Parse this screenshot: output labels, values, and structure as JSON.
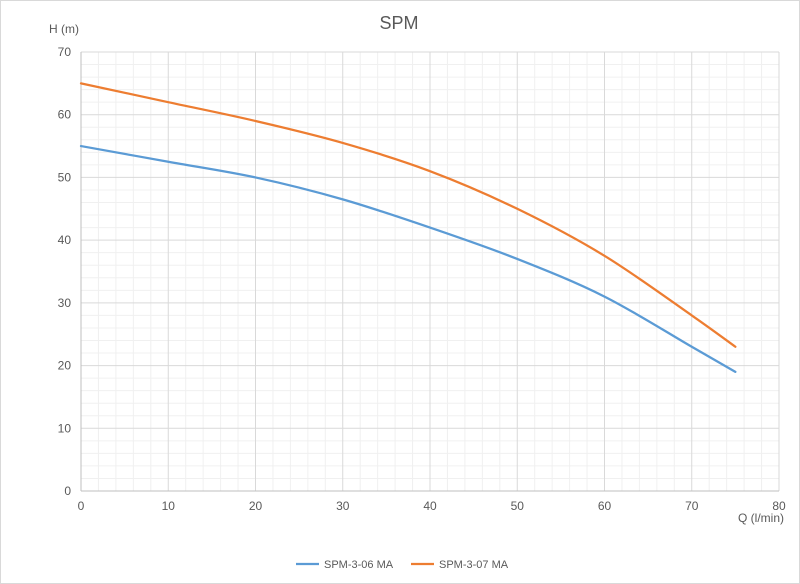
{
  "chart_data": {
    "type": "line",
    "title": "SPM",
    "xlabel": "Q (l/min)",
    "ylabel": "H (m)",
    "xlim": [
      0,
      80
    ],
    "ylim": [
      0,
      70
    ],
    "x_ticks": [
      "0",
      "10",
      "20",
      "30",
      "40",
      "50",
      "60",
      "70",
      "80"
    ],
    "y_ticks": [
      "0",
      "10",
      "20",
      "30",
      "40",
      "50",
      "60",
      "70"
    ],
    "grid": true,
    "minor_grid": true,
    "legend_position": "bottom",
    "series": [
      {
        "name": "SPM-3-06 MA",
        "color": "#5b9bd5",
        "points": [
          [
            0,
            55
          ],
          [
            10,
            52.5
          ],
          [
            20,
            50
          ],
          [
            30,
            46.5
          ],
          [
            40,
            42
          ],
          [
            50,
            37
          ],
          [
            60,
            31
          ],
          [
            70,
            23
          ],
          [
            75,
            19
          ]
        ]
      },
      {
        "name": "SPM-3-07 MA",
        "color": "#ed7d31",
        "points": [
          [
            0,
            65
          ],
          [
            10,
            62
          ],
          [
            20,
            59
          ],
          [
            30,
            55.5
          ],
          [
            40,
            51
          ],
          [
            50,
            45
          ],
          [
            60,
            37.5
          ],
          [
            70,
            28
          ],
          [
            75,
            23
          ]
        ]
      }
    ]
  }
}
